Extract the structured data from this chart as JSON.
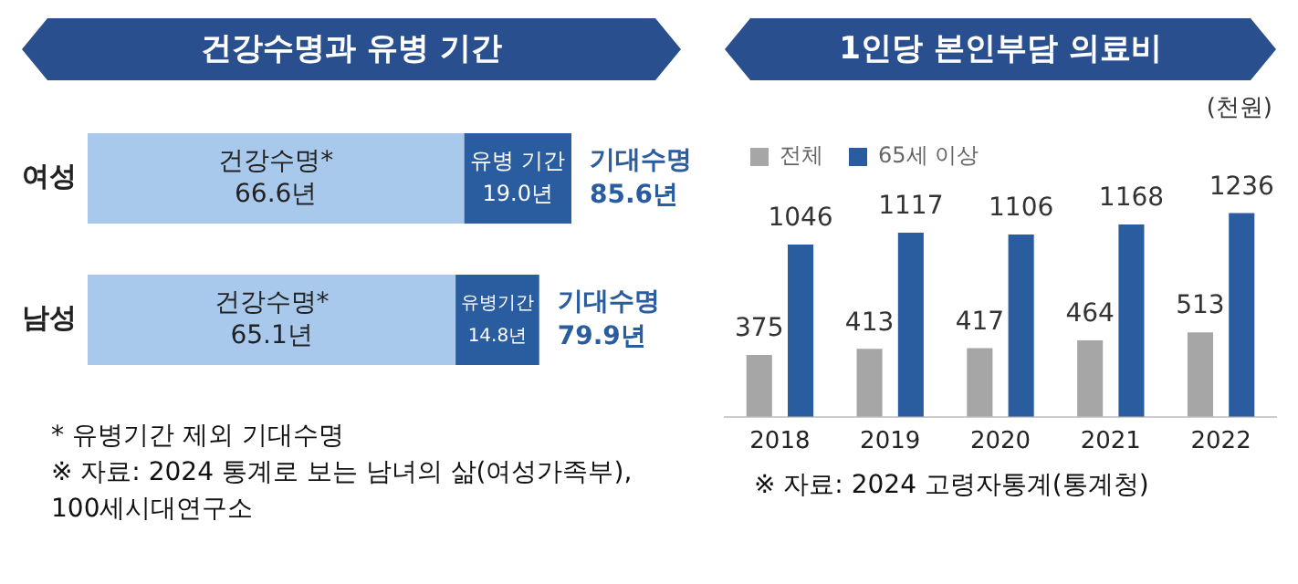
{
  "chart_data": [
    {
      "type": "bar",
      "title": "건강수명과 유병 기간",
      "orientation": "horizontal",
      "stacked": true,
      "tick_labels": "y",
      "categories": [
        "여성",
        "남성"
      ],
      "series": [
        {
          "color": "#a9c9ec",
          "values": [
            66.6,
            65.1
          ],
          "value_labels": [
            "건강수명*\n66.6년",
            "건강수명*\n65.1년"
          ]
        },
        {
          "color": "#2a5d9f",
          "values": [
            19.0,
            14.8
          ],
          "value_labels": [
            "유병 기간\n19.0년",
            "유병기간\n14.8년"
          ]
        }
      ],
      "totals": [
        "기대수명\n85.6년",
        "기대수명\n79.9년"
      ],
      "annotations": [
        "* 유병기간 제외 기대수명",
        "※ 자료: 2024 통계로 보는 남녀의 삶(여성가족부),\n100세시대연구소"
      ]
    },
    {
      "type": "bar",
      "title": "1인당 본인부담 의료비",
      "ylabel": "(천원)",
      "tick_labels": "x",
      "legend": "top left",
      "data_labels": true,
      "categories": [
        "2018",
        "2019",
        "2020",
        "2021",
        "2022"
      ],
      "series": [
        {
          "name": "전체",
          "color": "#a6a6a6",
          "values": [
            375,
            413,
            417,
            464,
            513
          ]
        },
        {
          "name": "65세 이상",
          "color": "#2a5d9f",
          "values": [
            1046,
            1117,
            1106,
            1168,
            1236
          ]
        }
      ],
      "annotations": [
        "※ 자료: 2024 고령자통계(통계청)"
      ]
    }
  ]
}
